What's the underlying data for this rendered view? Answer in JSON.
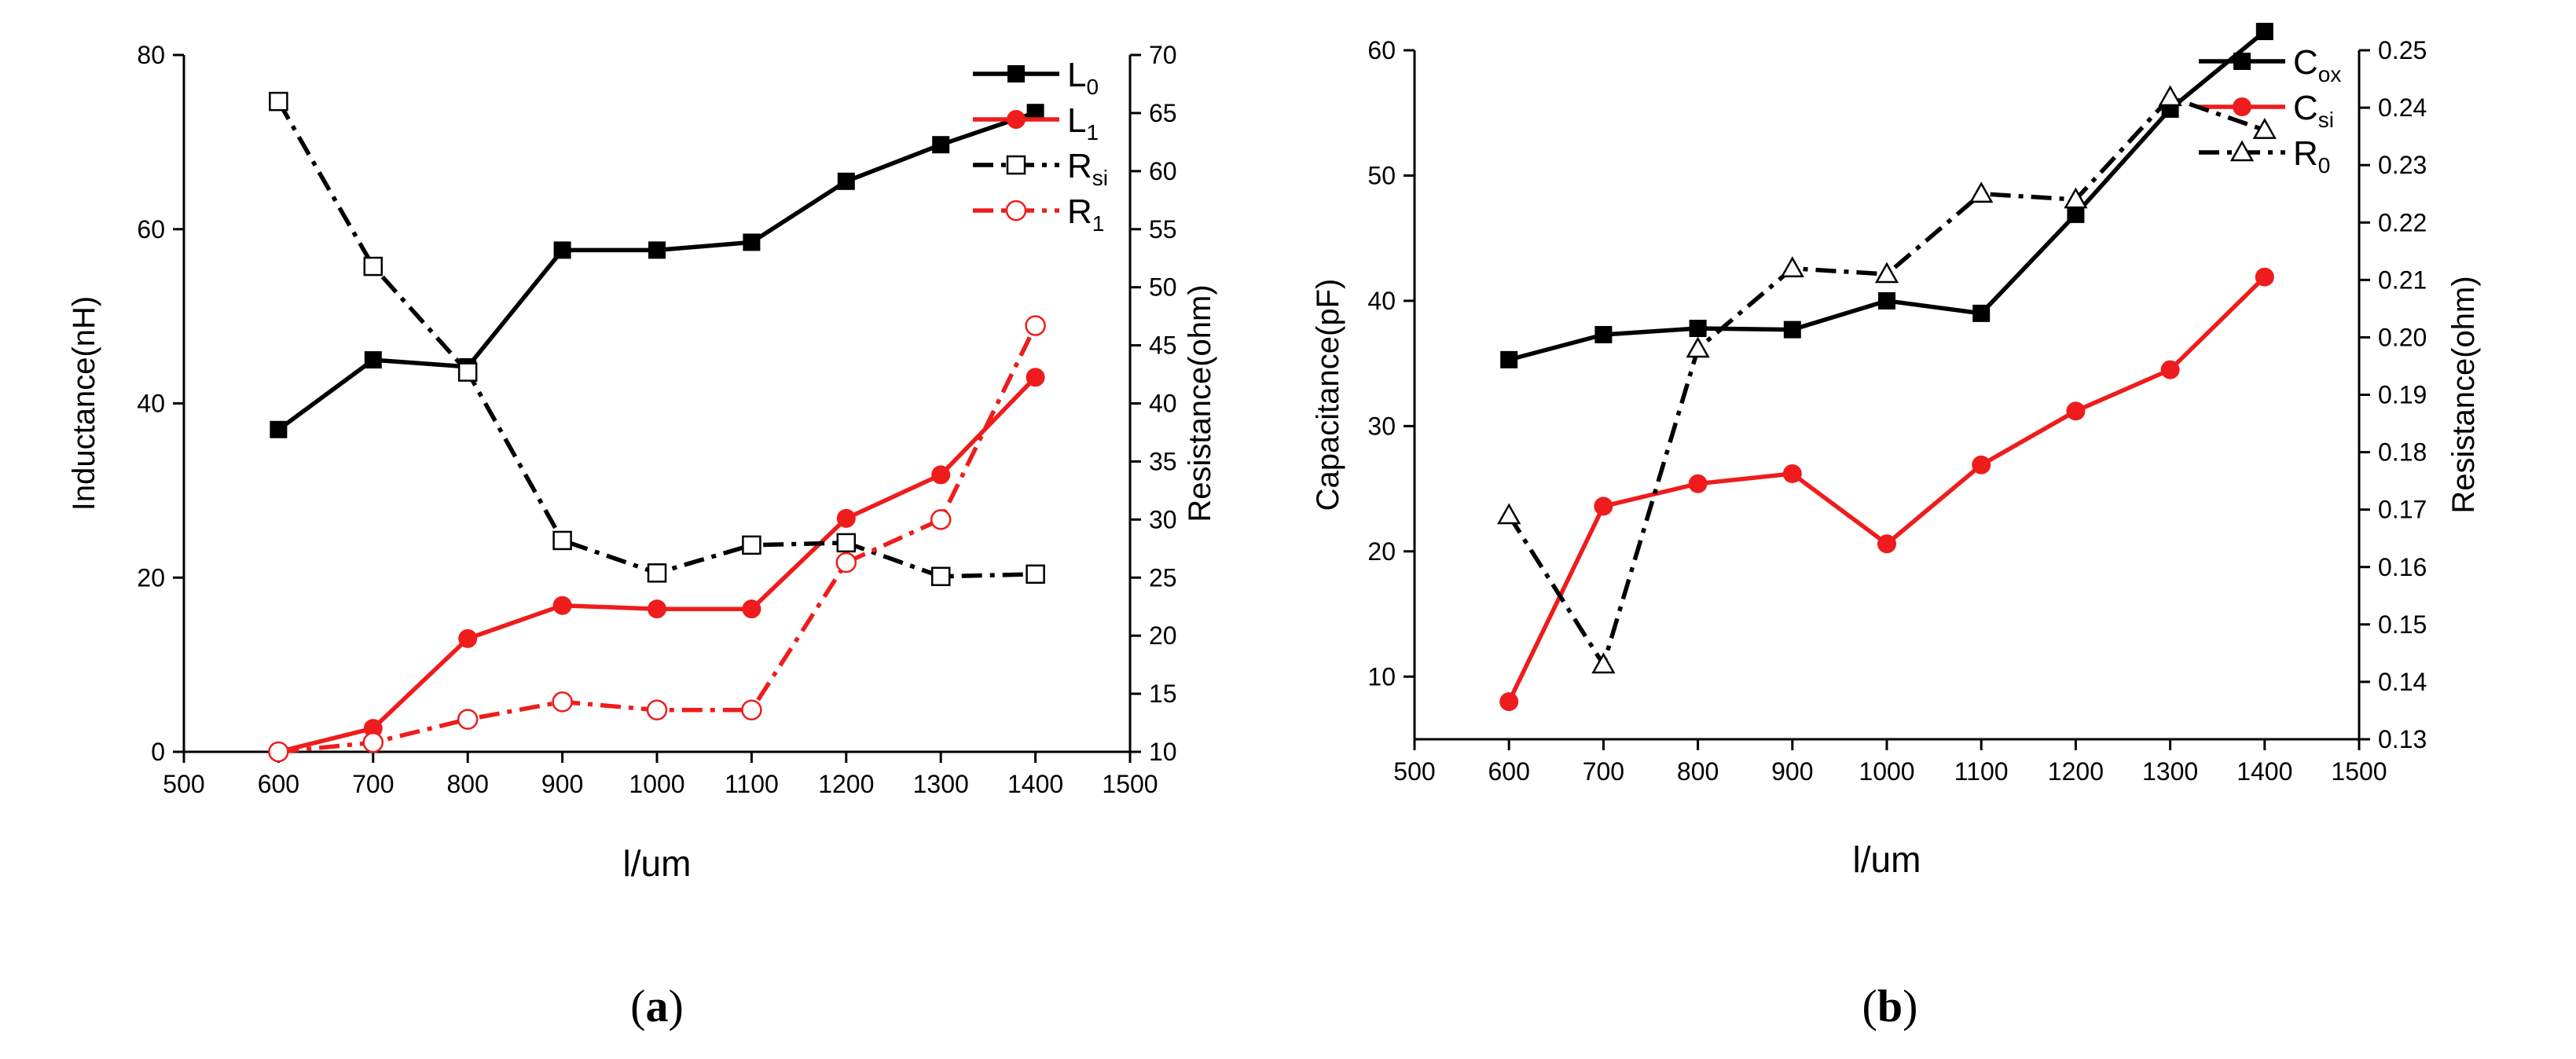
{
  "chart_data": [
    {
      "type": "line",
      "panel": "a",
      "caption": {
        "open": "(",
        "letter": "a",
        "close": ")"
      },
      "xlabel": "l/um",
      "ylabel": "Inductance(nH)",
      "y2label": "Resistance(ohm)",
      "xlim": [
        500,
        1500
      ],
      "ylim": [
        0,
        80
      ],
      "y2lim": [
        10,
        70
      ],
      "xticks": [
        500,
        600,
        700,
        800,
        900,
        1000,
        1100,
        1200,
        1300,
        1400,
        1500
      ],
      "yticks": [
        0,
        20,
        40,
        60,
        80
      ],
      "y2ticks": [
        10,
        15,
        20,
        25,
        30,
        35,
        40,
        45,
        50,
        55,
        60,
        65,
        70
      ],
      "legend_position": "top-right",
      "x": [
        600,
        700,
        800,
        900,
        1000,
        1100,
        1200,
        1300,
        1400
      ],
      "series": [
        {
          "name": "L",
          "sub": "0",
          "axis": "left",
          "color": "#000000",
          "dash": "solid",
          "marker": "square-filled",
          "values": [
            37,
            45,
            44.2,
            57.6,
            57.6,
            58.5,
            65.5,
            69.7,
            73.4
          ]
        },
        {
          "name": "L",
          "sub": "1",
          "axis": "left",
          "color": "#ee1c1c",
          "dash": "solid",
          "marker": "circle-filled",
          "values": [
            0,
            2.7,
            13,
            16.8,
            16.4,
            16.4,
            26.8,
            31.8,
            43
          ]
        },
        {
          "name": "R",
          "sub": "si",
          "axis": "right",
          "color": "#000000",
          "dash": "dashdot",
          "marker": "square-open",
          "values": [
            66.0,
            51.8,
            42.7,
            28.2,
            25.4,
            27.8,
            28.0,
            25.1,
            25.3
          ]
        },
        {
          "name": "R",
          "sub": "1",
          "axis": "right",
          "color": "#ee1c1c",
          "dash": "dashdot",
          "marker": "circle-open",
          "values": [
            10,
            10.8,
            12.8,
            14.3,
            13.6,
            13.6,
            26.3,
            30.0,
            46.7
          ]
        }
      ]
    },
    {
      "type": "line",
      "panel": "b",
      "caption": {
        "open": "(",
        "letter": "b",
        "close": ")"
      },
      "xlabel": "l/um",
      "ylabel": "Capacitance(pF)",
      "y2label": "Resistance(ohm)",
      "xlim": [
        500,
        1500
      ],
      "ylim": [
        5,
        60
      ],
      "y2lim": [
        0.13,
        0.25
      ],
      "xticks": [
        500,
        600,
        700,
        800,
        900,
        1000,
        1100,
        1200,
        1300,
        1400,
        1500
      ],
      "yticks": [
        10,
        20,
        30,
        40,
        50,
        60
      ],
      "y2ticks": [
        "0.13",
        "0.14",
        "0.15",
        "0.16",
        "0.17",
        "0.18",
        "0.19",
        "0.20",
        "0.21",
        "0.22",
        "0.23",
        "0.24",
        "0.25"
      ],
      "legend_position": "top-right",
      "x": [
        600,
        700,
        800,
        900,
        1000,
        1100,
        1200,
        1300,
        1400
      ],
      "series": [
        {
          "name": "C",
          "sub": "ox",
          "axis": "left",
          "color": "#000000",
          "dash": "solid",
          "marker": "square-filled",
          "values": [
            35.3,
            37.3,
            37.8,
            37.7,
            40,
            39,
            46.9,
            55.3,
            61.5
          ]
        },
        {
          "name": "C",
          "sub": "si",
          "axis": "left",
          "color": "#ee1c1c",
          "dash": "solid",
          "marker": "circle-filled",
          "values": [
            8,
            23.6,
            25.4,
            26.2,
            20.6,
            26.9,
            31.2,
            34.5,
            41.9
          ]
        },
        {
          "name": "R",
          "sub": "0",
          "axis": "right",
          "color": "#000000",
          "dash": "dashdot",
          "marker": "triangle-open",
          "values": [
            0.169,
            0.143,
            0.198,
            0.212,
            0.211,
            0.225,
            0.224,
            0.2418,
            0.2361
          ]
        }
      ]
    }
  ]
}
